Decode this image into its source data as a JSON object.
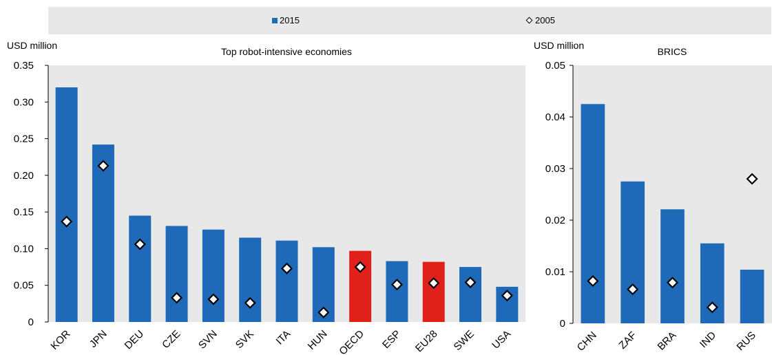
{
  "legend": {
    "series_a": "2015",
    "series_b": "2005"
  },
  "colors": {
    "bar": "#1f6ab8",
    "highlight": "#e0201b",
    "plot_bg": "#e8e8e8",
    "legend_bg": "#e8e8e8"
  },
  "chart_data": [
    {
      "type": "bar",
      "title": "Top robot-intensive economies",
      "ylabel": "USD million",
      "ylim": [
        0,
        0.35
      ],
      "yticks": [
        0,
        0.05,
        0.1,
        0.15,
        0.2,
        0.25,
        0.3,
        0.35
      ],
      "ytick_labels": [
        "0",
        "0.05",
        "0.10",
        "0.15",
        "0.20",
        "0.25",
        "0.30",
        "0.35"
      ],
      "categories": [
        "KOR",
        "JPN",
        "DEU",
        "CZE",
        "SVN",
        "SVK",
        "ITA",
        "HUN",
        "OECD",
        "ESP",
        "EU28",
        "SWE",
        "USA"
      ],
      "highlight": [
        "OECD",
        "EU28"
      ],
      "series": [
        {
          "name": "2015",
          "kind": "bar",
          "values": [
            0.32,
            0.242,
            0.145,
            0.131,
            0.126,
            0.115,
            0.111,
            0.102,
            0.097,
            0.083,
            0.082,
            0.075,
            0.048
          ]
        },
        {
          "name": "2005",
          "kind": "marker",
          "values": [
            0.137,
            0.213,
            0.106,
            0.033,
            0.031,
            0.026,
            0.073,
            0.013,
            0.075,
            0.051,
            0.053,
            0.054,
            0.036
          ]
        }
      ],
      "grid": false,
      "legend": "top"
    },
    {
      "type": "bar",
      "title": "BRICS",
      "ylabel": "USD million",
      "ylim": [
        0,
        0.05
      ],
      "yticks": [
        0,
        0.01,
        0.02,
        0.03,
        0.04,
        0.05
      ],
      "ytick_labels": [
        "0",
        "0.01",
        "0.02",
        "0.03",
        "0.04",
        "0.05"
      ],
      "categories": [
        "CHN",
        "ZAF",
        "BRA",
        "IND",
        "RUS"
      ],
      "highlight": [],
      "series": [
        {
          "name": "2015",
          "kind": "bar",
          "values": [
            0.0425,
            0.0275,
            0.0221,
            0.0155,
            0.0104
          ]
        },
        {
          "name": "2005",
          "kind": "marker",
          "values": [
            0.0082,
            0.0066,
            0.0079,
            0.0031,
            0.028
          ]
        }
      ],
      "grid": false,
      "legend": "top"
    }
  ]
}
